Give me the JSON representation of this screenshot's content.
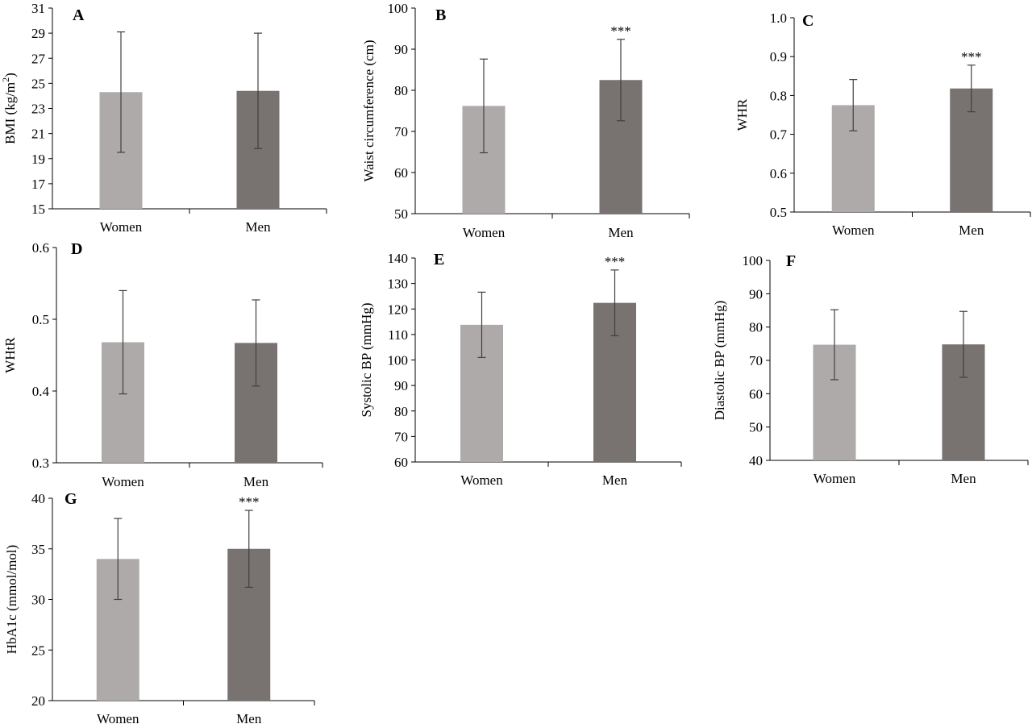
{
  "colors": {
    "women": "#adaaa9",
    "men": "#787271",
    "axis": "#000000",
    "error": "#404040"
  },
  "chart_data": [
    {
      "panel": "A",
      "type": "bar",
      "categories": [
        "Women",
        "Men"
      ],
      "values": [
        24.3,
        24.4
      ],
      "error": [
        4.8,
        4.6
      ],
      "significance": [
        "",
        ""
      ],
      "ylabel": "BMI (kg/m",
      "ylabel_sup": "2",
      "ylabel_end": ")",
      "ylim": [
        15,
        31
      ],
      "yticks": [
        "15",
        "17",
        "19",
        "21",
        "23",
        "25",
        "27",
        "29",
        "31"
      ]
    },
    {
      "panel": "B",
      "type": "bar",
      "categories": [
        "Women",
        "Men"
      ],
      "values": [
        76.2,
        82.5
      ],
      "error": [
        11.4,
        9.9
      ],
      "significance": [
        "",
        "***"
      ],
      "ylabel": "Waist circumference (cm)",
      "ylim": [
        50,
        100
      ],
      "yticks": [
        "50",
        "60",
        "70",
        "80",
        "90",
        "100"
      ]
    },
    {
      "panel": "C",
      "type": "bar",
      "categories": [
        "Women",
        "Men"
      ],
      "values": [
        0.775,
        0.818
      ],
      "error": [
        0.066,
        0.06
      ],
      "significance": [
        "",
        "***"
      ],
      "ylabel": "WHR",
      "ylim": [
        0.5,
        1.0
      ],
      "yticks": [
        "0.5",
        "0.6",
        "0.7",
        "0.8",
        "0.9",
        "1.0"
      ]
    },
    {
      "panel": "D",
      "type": "bar",
      "categories": [
        "Women",
        "Men"
      ],
      "values": [
        0.468,
        0.467
      ],
      "error": [
        0.072,
        0.06
      ],
      "significance": [
        "",
        ""
      ],
      "ylabel": "WHtR",
      "ylim": [
        0.3,
        0.6
      ],
      "yticks": [
        "0.3",
        "0.4",
        "0.5",
        "0.6"
      ]
    },
    {
      "panel": "E",
      "type": "bar",
      "categories": [
        "Women",
        "Men"
      ],
      "values": [
        113.8,
        122.4
      ],
      "error": [
        12.8,
        12.9
      ],
      "significance": [
        "",
        "***"
      ],
      "ylabel": "Systolic BP (mmHg)",
      "ylim": [
        60,
        140
      ],
      "yticks": [
        "60",
        "70",
        "80",
        "90",
        "100",
        "110",
        "120",
        "130",
        "140"
      ]
    },
    {
      "panel": "F",
      "type": "bar",
      "categories": [
        "Women",
        "Men"
      ],
      "values": [
        74.7,
        74.8
      ],
      "error": [
        10.5,
        9.9
      ],
      "significance": [
        "",
        ""
      ],
      "ylabel": "Diastolic BP (mmHg)",
      "ylim": [
        40,
        100
      ],
      "yticks": [
        "40",
        "50",
        "60",
        "70",
        "80",
        "90",
        "100"
      ]
    },
    {
      "panel": "G",
      "type": "bar",
      "categories": [
        "Women",
        "Men"
      ],
      "values": [
        34.0,
        35.0
      ],
      "error": [
        4.0,
        3.8
      ],
      "significance": [
        "",
        "***"
      ],
      "ylabel": "HbA1c (mmol/mol)",
      "ylim": [
        20,
        40
      ],
      "yticks": [
        "20",
        "25",
        "30",
        "35",
        "40"
      ]
    }
  ]
}
